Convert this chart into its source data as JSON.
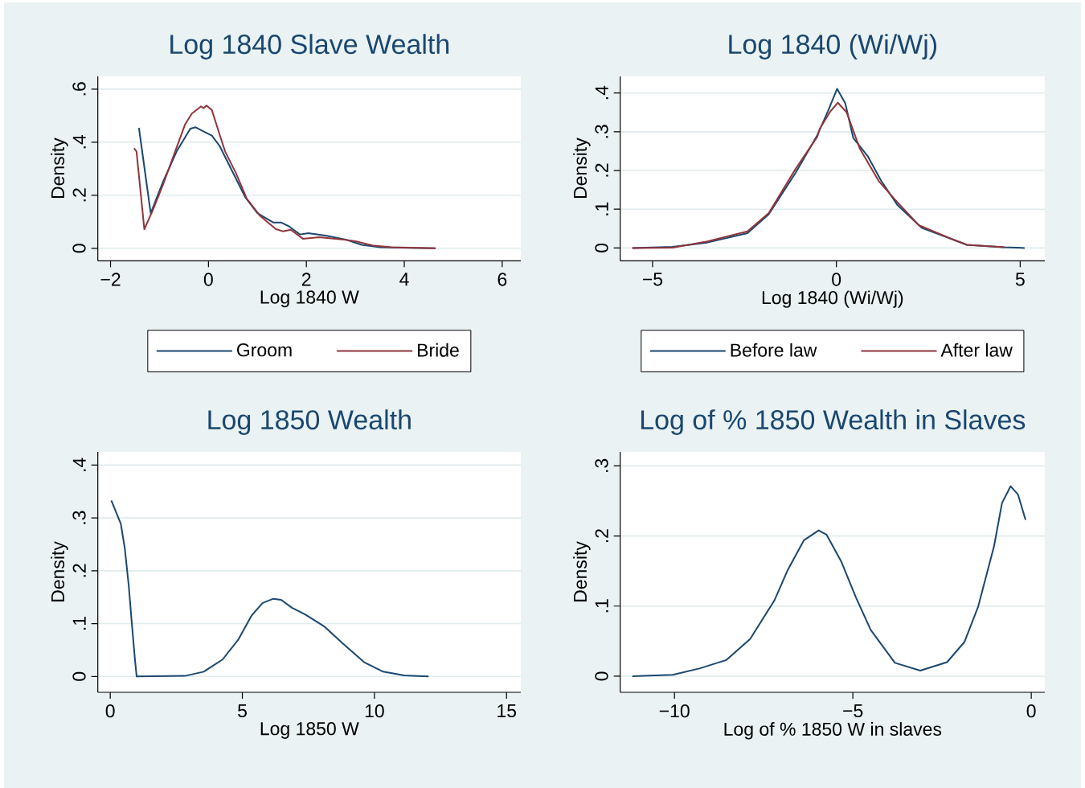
{
  "chart_data": [
    {
      "type": "line",
      "title": "Log 1840 Slave Wealth",
      "xlabel": "Log 1840 W",
      "ylabel": "Density",
      "grid": "y",
      "legend": "bottom",
      "xlim": [
        -2.26,
        6.38
      ],
      "ylim": [
        -0.047,
        0.648
      ],
      "xticks": [
        {
          "value": -2,
          "label": "−2"
        },
        0,
        2,
        4,
        6
      ],
      "yticks": [
        0,
        {
          "value": 0.2,
          "label": ".2"
        },
        {
          "value": 0.4,
          "label": ".4"
        },
        {
          "value": 0.6,
          "label": ".6"
        }
      ],
      "series": [
        {
          "name": "Groom",
          "color": "#1a476f",
          "x": [
            -1.42,
            -1.18,
            -0.92,
            -0.65,
            -0.37,
            -0.26,
            -0.15,
            0.07,
            0.23,
            0.45,
            0.75,
            1.0,
            1.33,
            1.49,
            1.65,
            1.87,
            2.04,
            2.42,
            2.8,
            3.13,
            3.51,
            4.64
          ],
          "values": [
            0.454,
            0.132,
            0.254,
            0.365,
            0.451,
            0.456,
            0.445,
            0.425,
            0.385,
            0.304,
            0.193,
            0.132,
            0.097,
            0.097,
            0.082,
            0.052,
            0.057,
            0.047,
            0.033,
            0.013,
            0.004,
            0.0
          ]
        },
        {
          "name": "Bride",
          "color": "#90353b",
          "x": [
            -1.52,
            -1.47,
            -1.31,
            -1.14,
            -0.92,
            -0.65,
            -0.48,
            -0.34,
            -0.15,
            -0.1,
            -0.04,
            0.07,
            0.2,
            0.34,
            0.56,
            0.78,
            1.05,
            1.38,
            1.52,
            1.68,
            1.93,
            2.26,
            2.8,
            3.02,
            3.35,
            3.73,
            4.64
          ],
          "values": [
            0.377,
            0.365,
            0.072,
            0.142,
            0.244,
            0.38,
            0.466,
            0.508,
            0.535,
            0.528,
            0.538,
            0.521,
            0.445,
            0.365,
            0.284,
            0.188,
            0.123,
            0.072,
            0.064,
            0.07,
            0.036,
            0.042,
            0.032,
            0.026,
            0.011,
            0.004,
            0.0
          ]
        }
      ]
    },
    {
      "type": "line",
      "title": "Log 1840 (Wi/Wj)",
      "xlabel": "Log 1840 (Wi/Wj)",
      "ylabel": "Density",
      "grid": "y",
      "legend": "bottom",
      "xlim": [
        -5.88,
        5.67
      ],
      "ylim": [
        -0.033,
        0.443
      ],
      "xticks": [
        {
          "value": -5,
          "label": "−5"
        },
        0,
        5
      ],
      "yticks": [
        0,
        {
          "value": 0.1,
          "label": ".1"
        },
        {
          "value": 0.2,
          "label": ".2"
        },
        {
          "value": 0.3,
          "label": ".3"
        },
        {
          "value": 0.4,
          "label": ".4"
        }
      ],
      "series": [
        {
          "name": "Before law",
          "color": "#1a476f",
          "x": [
            -5.55,
            -4.46,
            -3.51,
            -2.42,
            -1.84,
            -1.11,
            -0.52,
            -0.23,
            0.02,
            0.24,
            0.46,
            0.86,
            1.22,
            1.66,
            2.32,
            3.19,
            3.55,
            4.57,
            5.12
          ],
          "values": [
            0.0,
            0.003,
            0.014,
            0.038,
            0.087,
            0.194,
            0.291,
            0.353,
            0.411,
            0.374,
            0.284,
            0.236,
            0.173,
            0.111,
            0.052,
            0.021,
            0.008,
            0.002,
            0.0
          ]
        },
        {
          "name": "After law",
          "color": "#90353b",
          "x": [
            -5.55,
            -4.46,
            -3.51,
            -2.42,
            -1.84,
            -1.11,
            -0.52,
            -0.45,
            -0.16,
            0.04,
            0.28,
            0.64,
            1.15,
            1.66,
            2.24,
            3.12,
            3.55,
            4.57
          ],
          "values": [
            0.0,
            0.001,
            0.017,
            0.043,
            0.09,
            0.204,
            0.287,
            0.308,
            0.353,
            0.375,
            0.35,
            0.256,
            0.173,
            0.118,
            0.059,
            0.024,
            0.008,
            0.002
          ]
        }
      ]
    },
    {
      "type": "line",
      "title": "Log 1850 Wealth",
      "xlabel": "Log 1850 W",
      "ylabel": "Density",
      "grid": "y",
      "xlim": [
        -0.47,
        15.54
      ],
      "ylim": [
        -0.03,
        0.425
      ],
      "xticks": [
        0,
        5,
        10,
        15
      ],
      "yticks": [
        0,
        {
          "value": 0.1,
          "label": ".1"
        },
        {
          "value": 0.2,
          "label": ".2"
        },
        {
          "value": 0.3,
          "label": ".3"
        },
        {
          "value": 0.4,
          "label": ".4"
        }
      ],
      "series": [
        {
          "color": "#1a476f",
          "x": [
            0.04,
            0.4,
            0.55,
            0.7,
            0.8,
            0.93,
            1.0,
            2.83,
            3.54,
            4.25,
            4.85,
            5.36,
            5.77,
            6.17,
            6.47,
            6.88,
            7.39,
            8.09,
            8.81,
            9.61,
            10.33,
            11.13,
            12.05
          ],
          "values": [
            0.333,
            0.289,
            0.243,
            0.172,
            0.111,
            0.035,
            0.0,
            0.001,
            0.009,
            0.032,
            0.07,
            0.116,
            0.139,
            0.147,
            0.145,
            0.13,
            0.117,
            0.095,
            0.062,
            0.027,
            0.009,
            0.002,
            0.0
          ]
        }
      ]
    },
    {
      "type": "line",
      "title": "Log of % 1850 Wealth in Slaves",
      "xlabel": "Log of % 1850 W in slaves",
      "ylabel": "Density",
      "grid": "y",
      "xlim": [
        -11.52,
        0.38
      ],
      "ylim": [
        -0.023,
        0.32
      ],
      "xticks": [
        {
          "value": -10,
          "label": "−10"
        },
        {
          "value": -5,
          "label": "−5"
        },
        0
      ],
      "yticks": [
        0,
        {
          "value": 0.1,
          "label": ".1"
        },
        {
          "value": 0.2,
          "label": ".2"
        },
        {
          "value": 0.3,
          "label": ".3"
        }
      ],
      "series": [
        {
          "color": "#1a476f",
          "x": [
            -11.18,
            -10.05,
            -9.3,
            -8.55,
            -7.88,
            -7.2,
            -6.82,
            -6.37,
            -5.96,
            -5.74,
            -5.32,
            -4.91,
            -4.5,
            -3.82,
            -3.11,
            -2.36,
            -1.87,
            -1.49,
            -1.04,
            -0.82,
            -0.58,
            -0.37,
            -0.16
          ],
          "values": [
            0.0,
            0.002,
            0.011,
            0.023,
            0.053,
            0.108,
            0.152,
            0.194,
            0.208,
            0.202,
            0.163,
            0.112,
            0.066,
            0.019,
            0.008,
            0.02,
            0.049,
            0.099,
            0.186,
            0.247,
            0.271,
            0.259,
            0.223
          ]
        }
      ]
    }
  ]
}
